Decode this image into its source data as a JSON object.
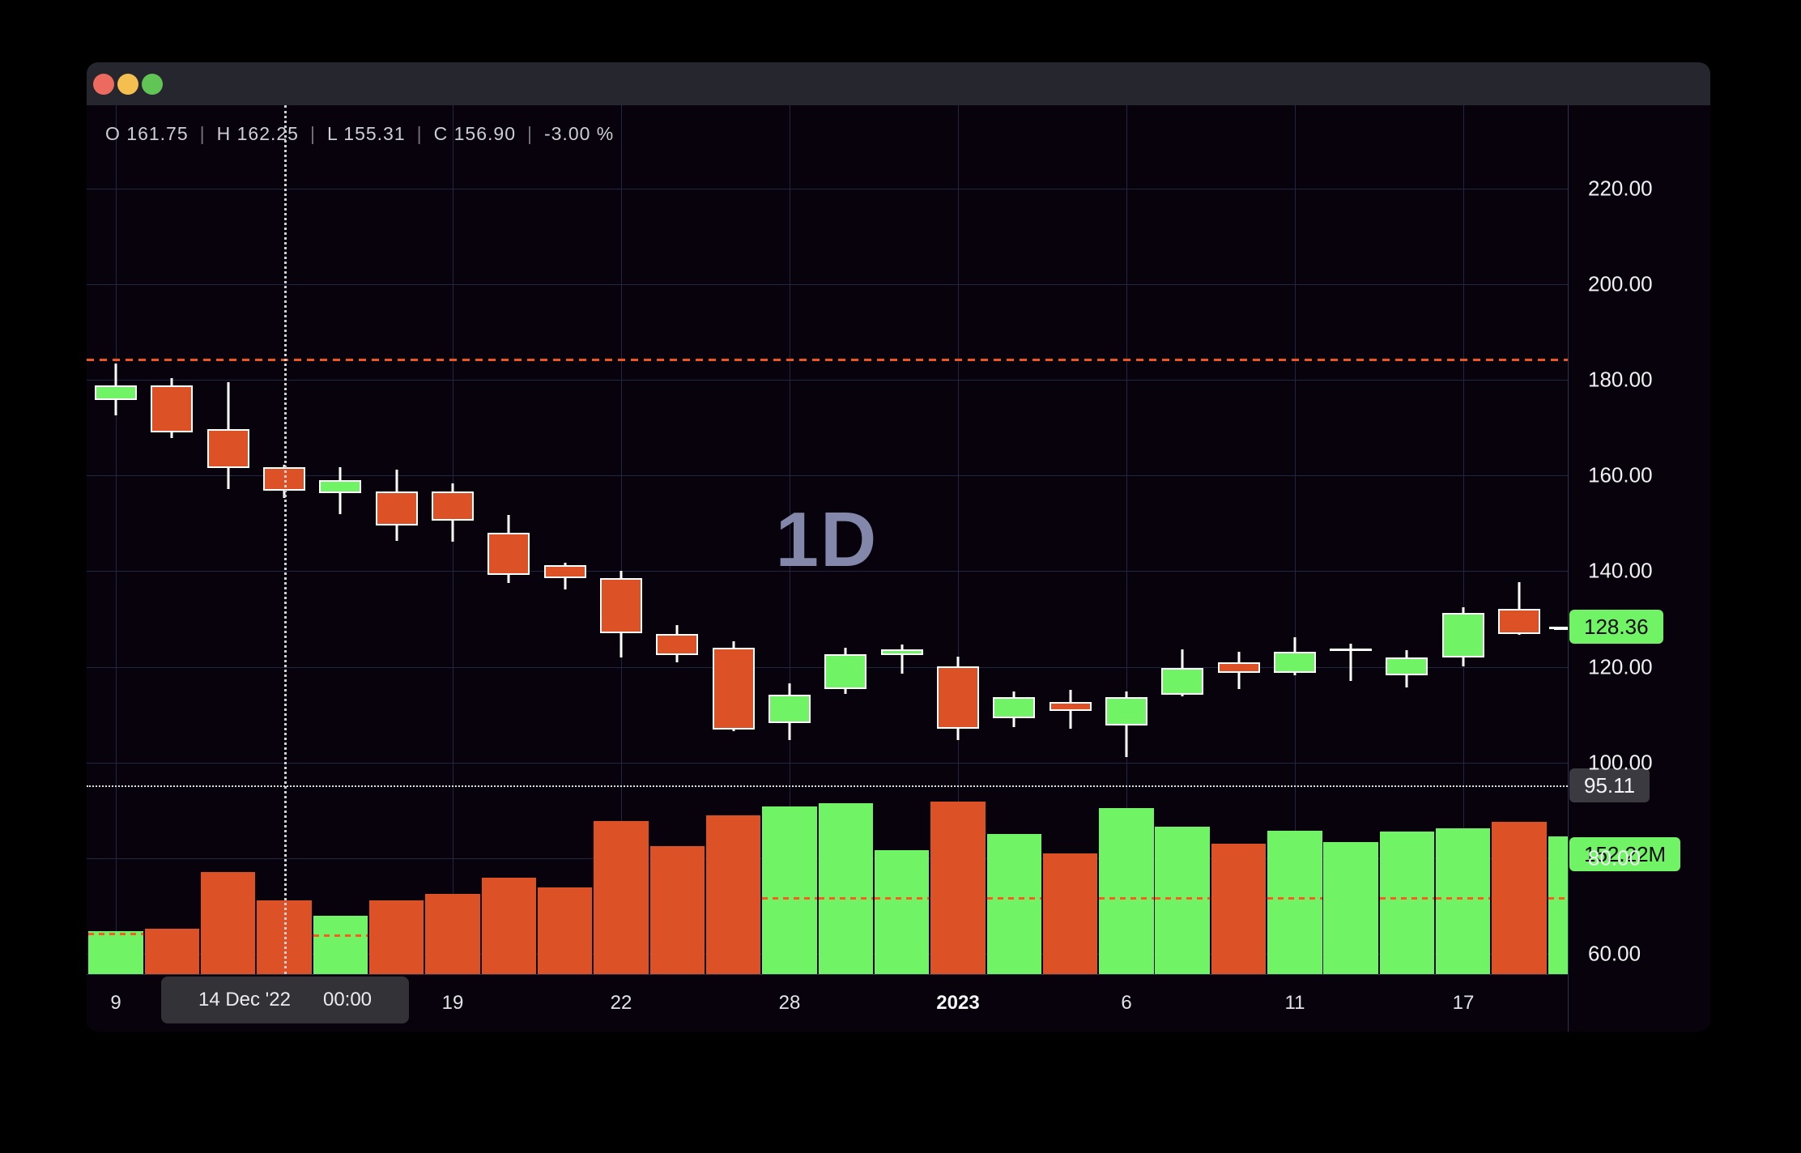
{
  "colors": {
    "candle_up": "#70f364",
    "candle_down": "#dd5126",
    "wick_and_border": "#ffffff",
    "level_line_orange": "#f0551e",
    "level_line_white": "#dfe0e4",
    "label_up_bg": "#70f364",
    "label_gray_bg": "#3a3a40",
    "grid": "#222741",
    "background": "#08020c"
  },
  "legend": {
    "parts": [
      "O 161.75",
      "H 162.25",
      "L 155.31",
      "C 156.90",
      "-3.00 %"
    ],
    "separator": "|"
  },
  "watermark": "1D",
  "price_axis": {
    "ticks": [
      "220.00",
      "200.00",
      "180.00",
      "160.00",
      "140.00",
      "120.00",
      "100.00",
      "80.00",
      "60.00"
    ],
    "values": [
      220,
      200,
      180,
      160,
      140,
      120,
      100,
      80,
      60
    ],
    "last_price_label": "128.36",
    "level_label": "95.11",
    "volume_label": "152.22M"
  },
  "time_axis": {
    "ticks": [
      {
        "label": "9",
        "bar": 1,
        "bold": false
      },
      {
        "label": "19",
        "bar": 7,
        "bold": false
      },
      {
        "label": "22",
        "bar": 10,
        "bold": false
      },
      {
        "label": "28",
        "bar": 13,
        "bold": false
      },
      {
        "label": "2023",
        "bar": 16,
        "bold": true
      },
      {
        "label": "6",
        "bar": 19,
        "bold": false
      },
      {
        "label": "11",
        "bar": 22,
        "bold": false
      },
      {
        "label": "17",
        "bar": 25,
        "bold": false
      }
    ],
    "crosshair": {
      "bar": 4,
      "date": "14 Dec '22",
      "time": "00:00"
    }
  },
  "chart_data": {
    "type": "candlestick",
    "interval": "1D",
    "legend_ohlc": {
      "open": 161.75,
      "high": 162.25,
      "low": 155.31,
      "close": 156.9,
      "change_pct": "-3.00 %"
    },
    "price_axis_visible_range": [
      56,
      237
    ],
    "grid": true,
    "candles": [
      {
        "ohlc": [
          175.8,
          183.5,
          172.6,
          178.9
        ],
        "up": true
      },
      {
        "ohlc": [
          178.8,
          180.3,
          167.8,
          169.0
        ],
        "up": false
      },
      {
        "ohlc": [
          169.7,
          179.6,
          157.1,
          161.6
        ],
        "up": false
      },
      {
        "ohlc": [
          161.75,
          162.25,
          155.31,
          156.9
        ],
        "up": false
      },
      {
        "ohlc": [
          156.4,
          161.7,
          151.9,
          159.1
        ],
        "up": true
      },
      {
        "ohlc": [
          156.6,
          161.3,
          146.4,
          149.5
        ],
        "up": false
      },
      {
        "ohlc": [
          156.6,
          158.4,
          146.2,
          150.6
        ],
        "up": false
      },
      {
        "ohlc": [
          148.1,
          151.8,
          137.6,
          139.3
        ],
        "up": false
      },
      {
        "ohlc": [
          141.2,
          141.8,
          136.1,
          138.6
        ],
        "up": false
      },
      {
        "ohlc": [
          138.5,
          140.0,
          122.0,
          127.1
        ],
        "up": false
      },
      {
        "ohlc": [
          126.9,
          128.8,
          121.0,
          122.4
        ],
        "up": false
      },
      {
        "ohlc": [
          123.9,
          125.4,
          106.6,
          106.9
        ],
        "up": false
      },
      {
        "ohlc": [
          108.2,
          116.6,
          104.6,
          114.1
        ],
        "up": true
      },
      {
        "ohlc": [
          115.3,
          123.9,
          114.4,
          122.7
        ],
        "up": true
      },
      {
        "ohlc": [
          122.5,
          124.7,
          118.6,
          123.7
        ],
        "up": true
      },
      {
        "ohlc": [
          120.0,
          122.2,
          104.6,
          107.1
        ],
        "up": false
      },
      {
        "ohlc": [
          109.2,
          114.9,
          107.3,
          113.7
        ],
        "up": true
      },
      {
        "ohlc": [
          112.6,
          115.1,
          107.1,
          110.7
        ],
        "up": false
      },
      {
        "ohlc": [
          107.7,
          114.9,
          101.2,
          113.6
        ],
        "up": true
      },
      {
        "ohlc": [
          114.1,
          123.7,
          113.9,
          119.7
        ],
        "up": true
      },
      {
        "ohlc": [
          120.9,
          123.1,
          115.3,
          118.7
        ],
        "up": false
      },
      {
        "ohlc": [
          118.8,
          126.1,
          118.3,
          123.2
        ],
        "up": true
      },
      {
        "ohlc": [
          123.6,
          124.8,
          117.0,
          123.6
        ],
        "up": true,
        "doji": true
      },
      {
        "ohlc": [
          118.3,
          123.5,
          115.6,
          122.0
        ],
        "up": true
      },
      {
        "ohlc": [
          122.0,
          132.5,
          120.1,
          131.3
        ],
        "up": true
      },
      {
        "ohlc": [
          132.1,
          137.7,
          126.7,
          126.9
        ],
        "up": false
      },
      {
        "ohlc": [
          127.9,
          128.8,
          127.5,
          128.36
        ],
        "up": true
      }
    ],
    "volume": {
      "unit": "M",
      "bars": [
        47.5,
        50.1,
        112.8,
        81.5,
        64.5,
        81.5,
        88.6,
        106.6,
        95.8,
        169.2,
        141.5,
        175.5,
        185.4,
        188.9,
        137.0,
        190.7,
        154.9,
        133.4,
        183.6,
        163.0,
        144.2,
        158.5,
        146.0,
        157.6,
        161.2,
        168.3,
        152.22
      ],
      "ma_dashed": [
        45.7,
        null,
        null,
        null,
        43.9,
        null,
        null,
        null,
        null,
        null,
        null,
        null,
        85,
        85,
        85,
        null,
        85,
        null,
        85,
        85,
        null,
        85,
        null,
        85,
        85,
        null,
        85
      ]
    },
    "levels": [
      {
        "value": 184.5,
        "style": "dashed-orange"
      },
      {
        "value": 95.11,
        "style": "dotted-white",
        "label": "95.11"
      }
    ],
    "last": {
      "price": 128.36,
      "volume_label": "152.22M"
    }
  }
}
